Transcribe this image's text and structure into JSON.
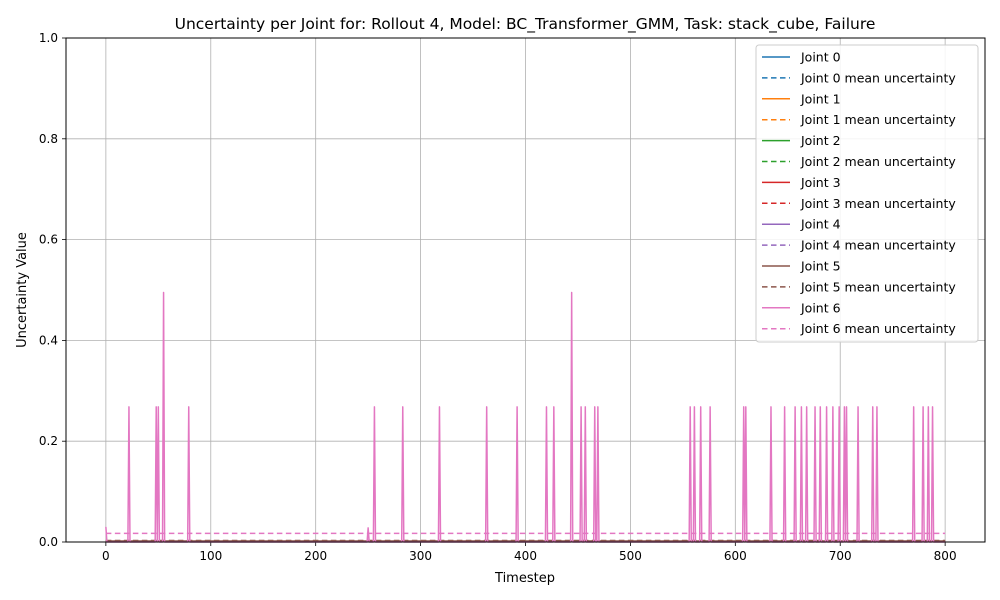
{
  "chart_data": {
    "type": "line",
    "title": "Uncertainty per Joint for: Rollout 4, Model: BC_Transformer_GMM, Task: stack_cube, Failure",
    "xlabel": "Timestep",
    "ylabel": "Uncertainty Value",
    "xlim": [
      -38,
      838
    ],
    "ylim": [
      0,
      1
    ],
    "xticks": [
      0,
      100,
      200,
      300,
      400,
      500,
      600,
      700,
      800
    ],
    "yticks": [
      0.0,
      0.2,
      0.4,
      0.6,
      0.8,
      1.0
    ],
    "xtick_labels": [
      "0",
      "100",
      "200",
      "300",
      "400",
      "500",
      "600",
      "700",
      "800"
    ],
    "ytick_labels": [
      "0.0",
      "0.2",
      "0.4",
      "0.6",
      "0.8",
      "1.0"
    ],
    "grid": true,
    "legend_position": "top-right",
    "series": [
      {
        "name": "Joint 0",
        "color": "#1f77b4",
        "baseline": 0.001,
        "mean": 0.001,
        "spikes": []
      },
      {
        "name": "Joint 1",
        "color": "#ff7f0e",
        "baseline": 0.001,
        "mean": 0.001,
        "spikes": []
      },
      {
        "name": "Joint 2",
        "color": "#2ca02c",
        "baseline": 0.001,
        "mean": 0.001,
        "spikes": []
      },
      {
        "name": "Joint 3",
        "color": "#d62728",
        "baseline": 0.001,
        "mean": 0.002,
        "spikes": []
      },
      {
        "name": "Joint 4",
        "color": "#9467bd",
        "baseline": 0.001,
        "mean": 0.002,
        "spikes": []
      },
      {
        "name": "Joint 5",
        "color": "#8c564b",
        "baseline": 0.002,
        "mean": 0.003,
        "spikes": []
      },
      {
        "name": "Joint 6",
        "color": "#e377c2",
        "baseline": 0.0,
        "mean": 0.017,
        "spikes": [
          [
            0,
            0.03
          ],
          [
            22,
            0.268
          ],
          [
            48,
            0.268
          ],
          [
            50,
            0.268
          ],
          [
            55,
            0.495
          ],
          [
            79,
            0.268
          ],
          [
            250,
            0.028
          ],
          [
            256,
            0.268
          ],
          [
            283,
            0.268
          ],
          [
            318,
            0.268
          ],
          [
            363,
            0.268
          ],
          [
            392,
            0.268
          ],
          [
            420,
            0.268
          ],
          [
            427,
            0.268
          ],
          [
            444,
            0.495
          ],
          [
            453,
            0.268
          ],
          [
            457,
            0.268
          ],
          [
            466,
            0.268
          ],
          [
            469,
            0.268
          ],
          [
            557,
            0.268
          ],
          [
            561,
            0.268
          ],
          [
            567,
            0.268
          ],
          [
            576,
            0.268
          ],
          [
            608,
            0.268
          ],
          [
            610,
            0.268
          ],
          [
            634,
            0.268
          ],
          [
            647,
            0.268
          ],
          [
            657,
            0.268
          ],
          [
            663,
            0.268
          ],
          [
            668,
            0.268
          ],
          [
            676,
            0.268
          ],
          [
            681,
            0.268
          ],
          [
            687,
            0.268
          ],
          [
            693,
            0.268
          ],
          [
            699,
            0.268
          ],
          [
            704,
            0.268
          ],
          [
            706,
            0.268
          ],
          [
            717,
            0.268
          ],
          [
            731,
            0.268
          ],
          [
            735,
            0.268
          ],
          [
            770,
            0.268
          ],
          [
            779,
            0.268
          ],
          [
            784,
            0.268
          ],
          [
            788,
            0.268
          ]
        ]
      }
    ],
    "legend_entries": [
      "Joint 0",
      "Joint 0 mean uncertainty",
      "Joint 1",
      "Joint 1 mean uncertainty",
      "Joint 2",
      "Joint 2 mean uncertainty",
      "Joint 3",
      "Joint 3 mean uncertainty",
      "Joint 4",
      "Joint 4 mean uncertainty",
      "Joint 5",
      "Joint 5 mean uncertainty",
      "Joint 6",
      "Joint 6 mean uncertainty"
    ]
  }
}
